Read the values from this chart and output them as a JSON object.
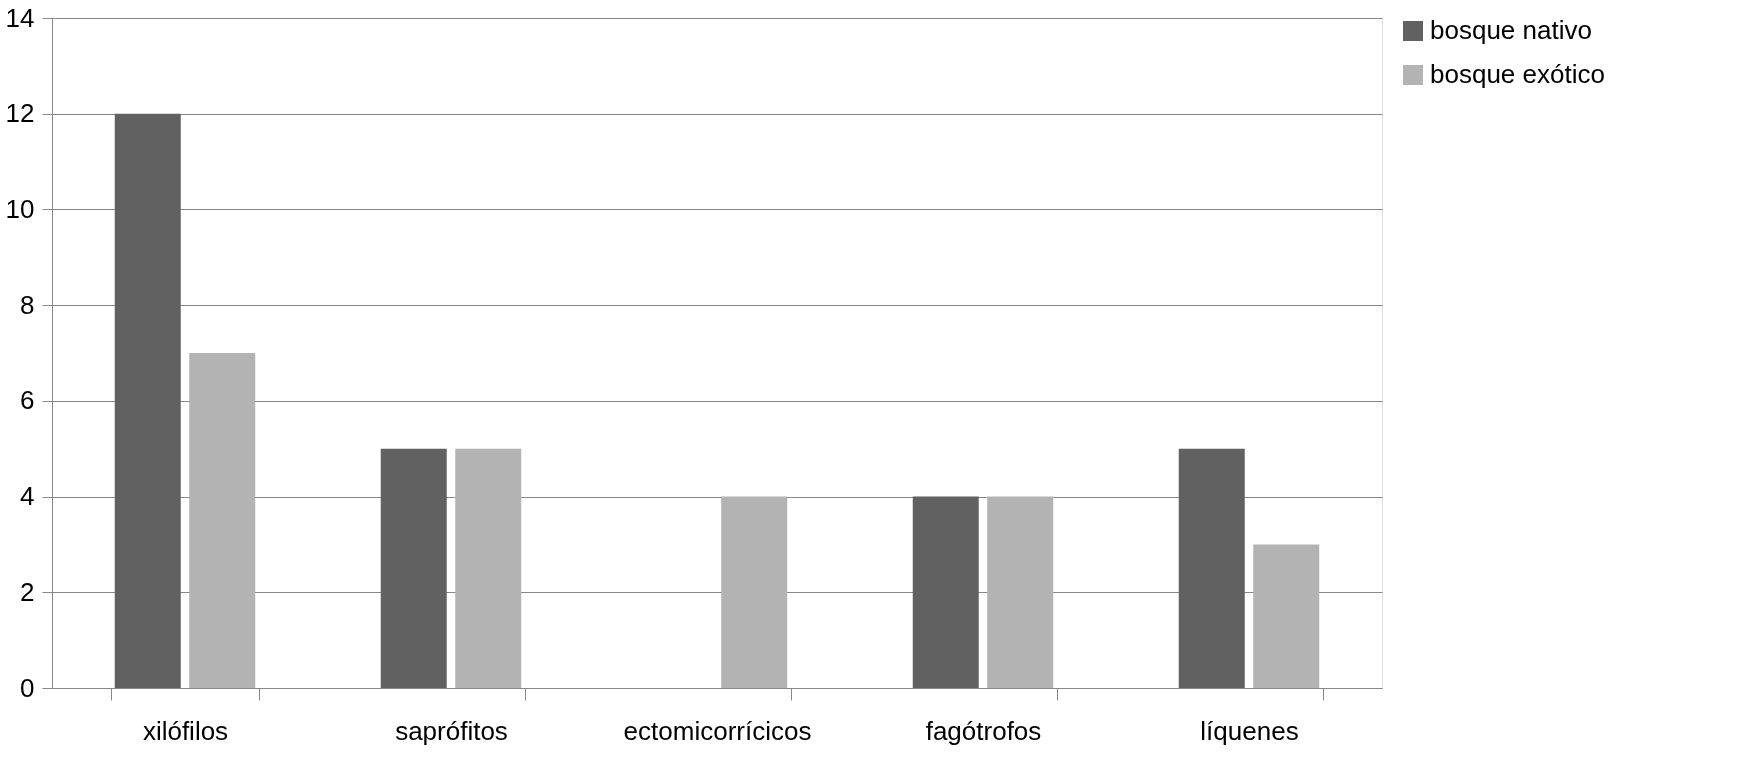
{
  "chart_data": {
    "type": "bar",
    "categories": [
      "xilófilos",
      "saprófitos",
      "ectomicorrícicos",
      "fagótrofos",
      "líquenes"
    ],
    "series": [
      {
        "name": "bosque nativo",
        "color": "#616161",
        "values": [
          12,
          5,
          0,
          4,
          5
        ]
      },
      {
        "name": "bosque exótico",
        "color": "#b3b3b3",
        "values": [
          7,
          5,
          4,
          4,
          3
        ]
      }
    ],
    "ylim": [
      0,
      14
    ],
    "yticks": [
      0,
      2,
      4,
      6,
      8,
      10,
      12,
      14
    ],
    "grid": "y",
    "legend": "right"
  }
}
